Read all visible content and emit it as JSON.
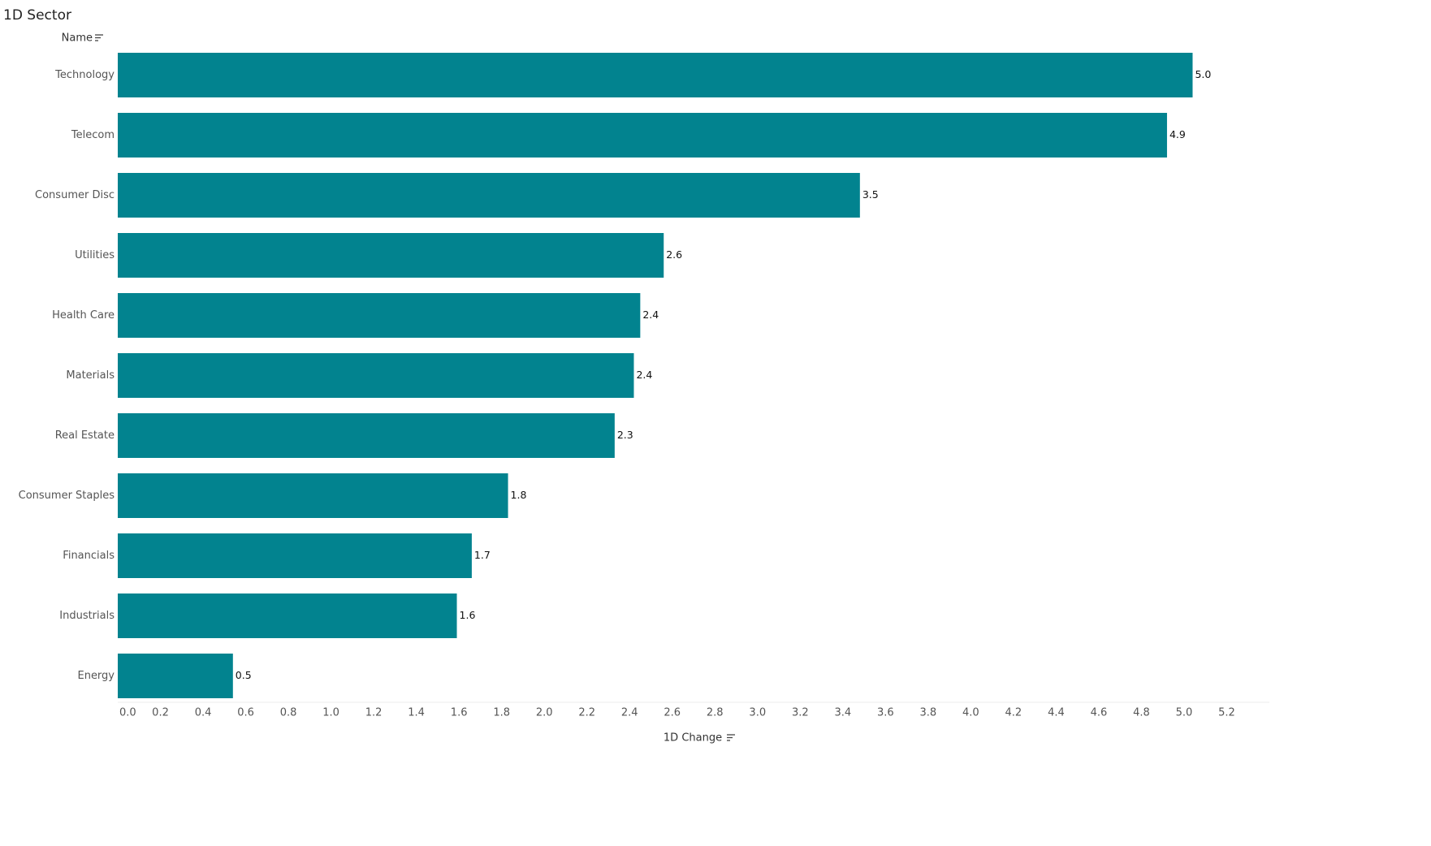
{
  "chart_data": {
    "type": "barh",
    "title": "1D Sector",
    "y_label": "Name",
    "x_label": "1D Change",
    "categories": [
      "Technology",
      "Telecom",
      "Consumer Disc",
      "Utilities",
      "Health Care",
      "Materials",
      "Real Estate",
      "Consumer Staples",
      "Financials",
      "Industrials",
      "Energy"
    ],
    "values": [
      5.04,
      4.92,
      3.48,
      2.56,
      2.45,
      2.42,
      2.33,
      1.83,
      1.66,
      1.59,
      0.54
    ],
    "value_labels": [
      "5.0",
      "4.9",
      "3.5",
      "2.6",
      "2.4",
      "2.4",
      "2.3",
      "1.8",
      "1.7",
      "1.6",
      "0.5"
    ],
    "color": "#02838f",
    "xlim": [
      0,
      5.4
    ],
    "xticks": [
      {
        "value": 0,
        "label": "0.0"
      },
      0.2,
      0.4,
      0.6,
      0.8,
      {
        "value": 1,
        "label": "1.0"
      },
      1.2,
      1.4,
      1.6,
      1.8,
      {
        "value": 2,
        "label": "2.0"
      },
      2.2,
      2.4,
      2.6,
      2.8,
      {
        "value": 3,
        "label": "3.0"
      },
      3.2,
      3.4,
      3.6,
      3.8,
      {
        "value": 4,
        "label": "4.0"
      },
      4.2,
      4.4,
      4.6,
      4.8,
      {
        "value": 5,
        "label": "5.0"
      },
      5.2
    ],
    "grid": false
  }
}
